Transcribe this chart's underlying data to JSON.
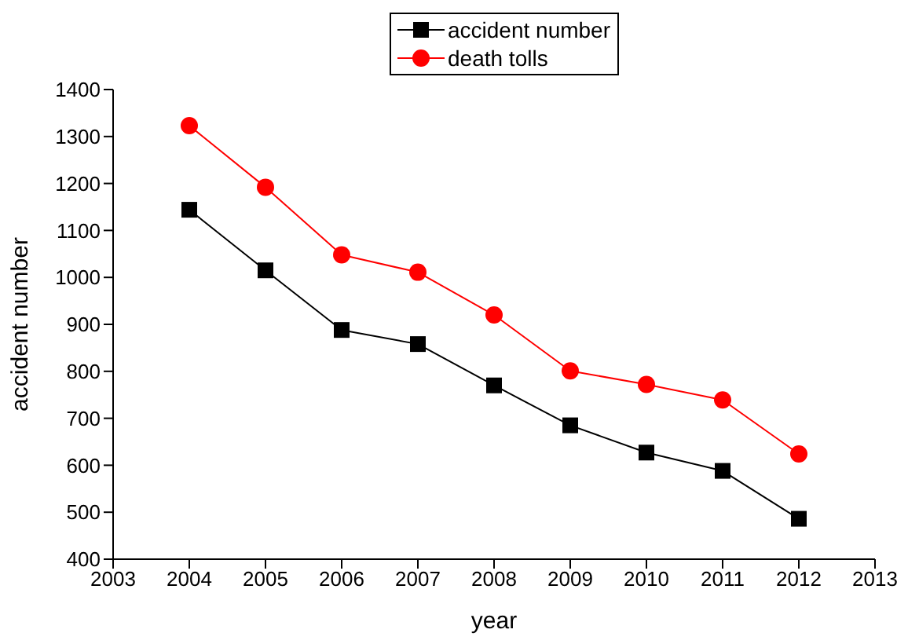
{
  "chart_data": {
    "type": "line",
    "xlabel": "year",
    "ylabel": "accident number",
    "x": [
      2004,
      2005,
      2006,
      2007,
      2008,
      2009,
      2010,
      2011,
      2012
    ],
    "series": [
      {
        "name": "accident number",
        "color": "#000000",
        "marker": "square",
        "values": [
          1144,
          1015,
          888,
          858,
          770,
          685,
          627,
          588,
          486
        ]
      },
      {
        "name": "death tolls",
        "color": "#ff0000",
        "marker": "circle",
        "values": [
          1323,
          1192,
          1048,
          1011,
          920,
          801,
          772,
          739,
          624
        ]
      }
    ],
    "xlim": [
      2003,
      2013
    ],
    "xticks": [
      2003,
      2004,
      2005,
      2006,
      2007,
      2008,
      2009,
      2010,
      2011,
      2012,
      2013
    ],
    "ylim": [
      400,
      1400
    ],
    "yticks": [
      400,
      500,
      600,
      700,
      800,
      900,
      1000,
      1100,
      1200,
      1300,
      1400
    ],
    "grid": false,
    "legend": "top",
    "line_style": "solid"
  }
}
